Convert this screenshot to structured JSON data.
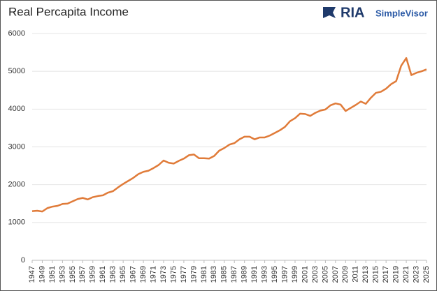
{
  "chart_data": {
    "type": "line",
    "title": "Real Percapita Income",
    "x": [
      1947,
      1948,
      1949,
      1950,
      1951,
      1952,
      1953,
      1954,
      1955,
      1956,
      1957,
      1958,
      1959,
      1960,
      1961,
      1962,
      1963,
      1964,
      1965,
      1966,
      1967,
      1968,
      1969,
      1970,
      1971,
      1972,
      1973,
      1974,
      1975,
      1976,
      1977,
      1978,
      1979,
      1980,
      1981,
      1982,
      1983,
      1984,
      1985,
      1986,
      1987,
      1988,
      1989,
      1990,
      1991,
      1992,
      1993,
      1994,
      1995,
      1996,
      1997,
      1998,
      1999,
      2000,
      2001,
      2002,
      2003,
      2004,
      2005,
      2006,
      2007,
      2008,
      2009,
      2010,
      2011,
      2012,
      2013,
      2014,
      2015,
      2016,
      2017,
      2018,
      2019,
      2020,
      2021,
      2022,
      2023,
      2024,
      2025
    ],
    "series": [
      {
        "name": "Real Percapita Income",
        "color": "#e07b39",
        "values": [
          1300,
          1310,
          1290,
          1380,
          1420,
          1440,
          1490,
          1500,
          1560,
          1620,
          1650,
          1610,
          1670,
          1700,
          1720,
          1790,
          1830,
          1930,
          2020,
          2100,
          2180,
          2280,
          2340,
          2370,
          2440,
          2520,
          2640,
          2580,
          2560,
          2630,
          2690,
          2780,
          2800,
          2700,
          2700,
          2690,
          2760,
          2900,
          2970,
          3060,
          3100,
          3200,
          3270,
          3270,
          3200,
          3250,
          3250,
          3300,
          3370,
          3440,
          3530,
          3680,
          3760,
          3880,
          3870,
          3820,
          3900,
          3960,
          3990,
          4100,
          4150,
          4120,
          3950,
          4030,
          4110,
          4200,
          4140,
          4300,
          4430,
          4460,
          4540,
          4660,
          4740,
          5150,
          5350,
          4900,
          4960,
          5000,
          5050
        ]
      }
    ],
    "xlim": [
      1947,
      2025
    ],
    "xticks": [
      1947,
      1949,
      1951,
      1953,
      1955,
      1957,
      1959,
      1961,
      1963,
      1965,
      1967,
      1969,
      1971,
      1973,
      1975,
      1977,
      1979,
      1981,
      1983,
      1985,
      1987,
      1989,
      1991,
      1993,
      1995,
      1997,
      1999,
      2001,
      2003,
      2005,
      2007,
      2009,
      2011,
      2013,
      2015,
      2017,
      2019,
      2021,
      2023,
      2025
    ],
    "ylim": [
      0,
      6000
    ],
    "yticks": [
      0,
      1000,
      2000,
      3000,
      4000,
      5000,
      6000
    ],
    "grid": true
  },
  "logo": {
    "mark": "RIA",
    "brand": "SimpleVisor"
  }
}
